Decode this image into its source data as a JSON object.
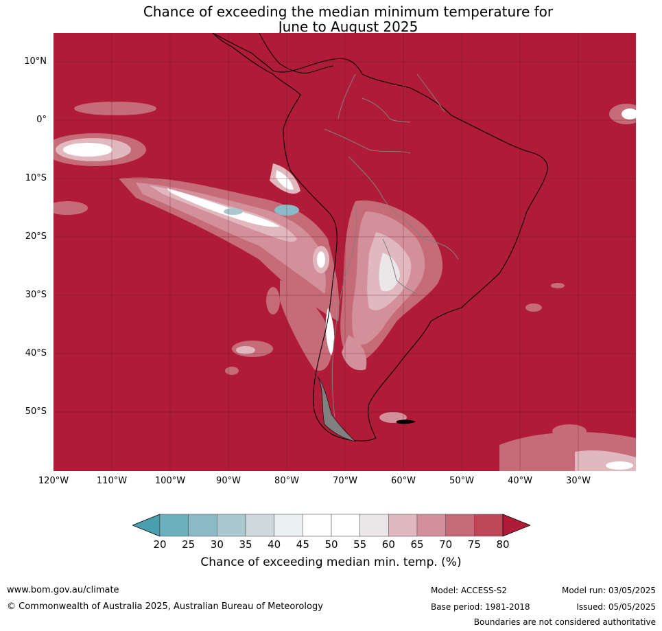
{
  "title_line1": "Chance of exceeding the median minimum temperature for",
  "title_line2": "June to August 2025",
  "lat_labels": [
    "10°N",
    "0°",
    "10°S",
    "20°S",
    "30°S",
    "40°S",
    "50°S"
  ],
  "lon_labels": [
    "120°W",
    "110°W",
    "100°W",
    "90°W",
    "80°W",
    "70°W",
    "60°W",
    "50°W",
    "40°W",
    "30°W"
  ],
  "colorbar": {
    "ticks": [
      "20",
      "25",
      "30",
      "35",
      "40",
      "45",
      "50",
      "55",
      "60",
      "65",
      "70",
      "75",
      "80"
    ],
    "colors": [
      "#4a9fae",
      "#6cb0bd",
      "#8bbac7",
      "#a9c8cf",
      "#cfd9dc",
      "#e8f0f2",
      "#ffffff",
      "#ffffff",
      "#ebe7e9",
      "#e0b8be",
      "#d3909a",
      "#c66b78",
      "#bd4858",
      "#b01c37"
    ],
    "label": "Chance of exceeding median min. temp. (%)"
  },
  "footer": {
    "website": "www.bom.gov.au/climate",
    "copyright": "© Commonwealth of Australia 2025, Australian Bureau of Meteorology",
    "model": "Model: ACCESS-S2",
    "base_period": "Base period: 1981-2018",
    "model_run": "Model run: 03/05/2025",
    "issued": "Issued: 05/05/2025",
    "disclaimer": "Boundaries are not considered authoritative"
  }
}
